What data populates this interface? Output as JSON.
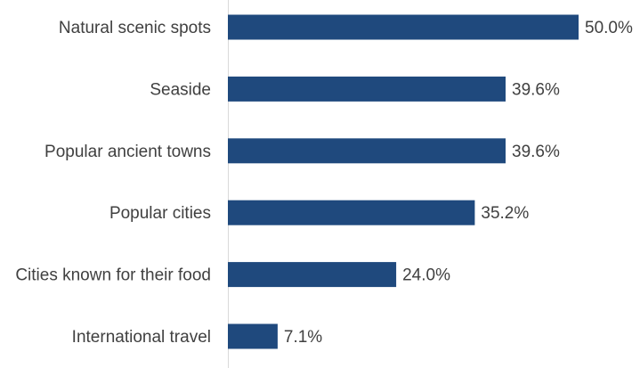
{
  "chart_data": {
    "type": "bar",
    "orientation": "horizontal",
    "categories": [
      "Natural scenic spots",
      "Seaside",
      "Popular ancient towns",
      "Popular cities",
      "Cities known for their food",
      "International travel"
    ],
    "values": [
      50.0,
      39.6,
      39.6,
      35.2,
      24.0,
      7.1
    ],
    "value_labels": [
      "50.0%",
      "39.6%",
      "39.6%",
      "35.2%",
      "24.0%",
      "7.1%"
    ],
    "unit": "%",
    "xlim": [
      0,
      50
    ],
    "grid": false,
    "legend": "none",
    "bar_color": "#1f497d",
    "axis_color": "#d9d9d9",
    "text_color": "#404040"
  }
}
